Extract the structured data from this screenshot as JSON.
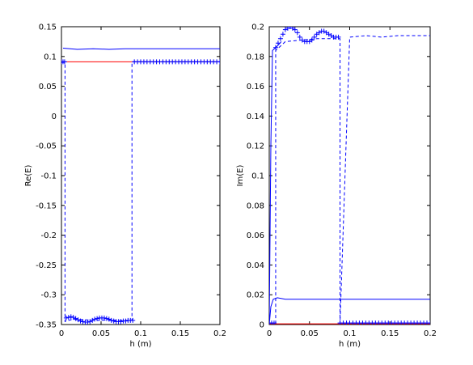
{
  "chart_data": [
    {
      "type": "line",
      "xlabel": "h (m)",
      "ylabel": "Re(E)",
      "xlim": [
        0,
        0.2
      ],
      "ylim": [
        -0.35,
        0.15
      ],
      "xticks": [
        0,
        0.05,
        0.1,
        0.15,
        0.2
      ],
      "xtick_labels": [
        "0",
        "0.05",
        "0.1",
        "0.15",
        "0.2"
      ],
      "yticks": [
        -0.35,
        -0.3,
        -0.25,
        -0.2,
        -0.15,
        -0.1,
        -0.05,
        0,
        0.05,
        0.1,
        0.15
      ],
      "ytick_labels": [
        "-0.35",
        "-0.3",
        "-0.25",
        "-0.2",
        "-0.15",
        "-0.1",
        "-0.05",
        "0",
        "0.05",
        "0.1",
        "0.15"
      ],
      "grid": false,
      "series": [
        {
          "style": "solid",
          "color": "#0000ff",
          "x": [
            0.002,
            0.02,
            0.04,
            0.06,
            0.08,
            0.1,
            0.12,
            0.14,
            0.16,
            0.18,
            0.2
          ],
          "y": [
            0.114,
            0.112,
            0.113,
            0.112,
            0.113,
            0.113,
            0.113,
            0.113,
            0.113,
            0.113,
            0.113
          ]
        },
        {
          "style": "solid",
          "color": "#ff0000",
          "x": [
            0.0,
            0.2
          ],
          "y": [
            0.091,
            0.091
          ]
        },
        {
          "style": "dashed",
          "color": "#0000ff",
          "x": [
            0.0,
            0.0045,
            0.0045,
            0.012,
            0.02,
            0.03,
            0.04,
            0.05,
            0.06,
            0.07,
            0.08,
            0.089,
            0.089,
            0.2
          ],
          "y": [
            0.09,
            0.09,
            -0.345,
            -0.342,
            -0.341,
            -0.342,
            -0.343,
            -0.343,
            -0.342,
            -0.343,
            -0.343,
            -0.343,
            0.091,
            0.091
          ]
        },
        {
          "style": "plus",
          "color": "#0000ff",
          "x": [
            0.0,
            0.002,
            0.004,
            0.092,
            0.096,
            0.1,
            0.104,
            0.108,
            0.112,
            0.116,
            0.12,
            0.124,
            0.128,
            0.132,
            0.136,
            0.14,
            0.144,
            0.148,
            0.152,
            0.156,
            0.16,
            0.164,
            0.168,
            0.172,
            0.176,
            0.18,
            0.184,
            0.188,
            0.192,
            0.196,
            0.2
          ],
          "y": [
            0.091,
            0.091,
            0.091,
            0.091,
            0.091,
            0.091,
            0.091,
            0.091,
            0.091,
            0.091,
            0.091,
            0.091,
            0.091,
            0.091,
            0.091,
            0.091,
            0.091,
            0.091,
            0.091,
            0.091,
            0.091,
            0.091,
            0.091,
            0.091,
            0.091,
            0.091,
            0.091,
            0.091,
            0.091,
            0.091,
            0.091
          ]
        },
        {
          "style": "plus",
          "color": "#0000ff",
          "x": [
            0.006,
            0.009,
            0.012,
            0.015,
            0.018,
            0.021,
            0.024,
            0.027,
            0.03,
            0.033,
            0.036,
            0.039,
            0.042,
            0.045,
            0.048,
            0.051,
            0.054,
            0.057,
            0.06,
            0.063,
            0.066,
            0.069,
            0.072,
            0.075,
            0.078,
            0.081,
            0.084,
            0.087,
            0.09
          ],
          "y": [
            -0.339,
            -0.338,
            -0.337,
            -0.338,
            -0.34,
            -0.342,
            -0.344,
            -0.345,
            -0.346,
            -0.346,
            -0.345,
            -0.343,
            -0.341,
            -0.34,
            -0.339,
            -0.339,
            -0.339,
            -0.34,
            -0.341,
            -0.343,
            -0.344,
            -0.345,
            -0.345,
            -0.345,
            -0.344,
            -0.344,
            -0.343,
            -0.343,
            -0.343
          ]
        }
      ]
    },
    {
      "type": "line",
      "xlabel": "h (m)",
      "ylabel": "Im(E)",
      "xlim": [
        0,
        0.2
      ],
      "ylim": [
        0,
        0.2
      ],
      "xticks": [
        0,
        0.05,
        0.1,
        0.15,
        0.2
      ],
      "xtick_labels": [
        "0",
        "0.05",
        "0.1",
        "0.15",
        "0.2"
      ],
      "yticks": [
        0,
        0.02,
        0.04,
        0.06,
        0.08,
        0.1,
        0.12,
        0.14,
        0.16,
        0.18,
        0.2
      ],
      "ytick_labels": [
        "0",
        "0.02",
        "0.04",
        "0.06",
        "0.08",
        "0.1",
        "0.12",
        "0.14",
        "0.16",
        "0.18",
        "0.2"
      ],
      "grid": false,
      "series": [
        {
          "style": "solid",
          "color": "#0000ff",
          "x": [
            0.0,
            0.002,
            0.005,
            0.01,
            0.02,
            0.04,
            0.06,
            0.08,
            0.1,
            0.12,
            0.14,
            0.16,
            0.18,
            0.2
          ],
          "y": [
            0.0,
            0.012,
            0.017,
            0.018,
            0.017,
            0.017,
            0.017,
            0.017,
            0.017,
            0.017,
            0.017,
            0.017,
            0.017,
            0.017
          ]
        },
        {
          "style": "solid",
          "color": "#ff0000",
          "x": [
            0.0,
            0.2
          ],
          "y": [
            0.0005,
            0.0005
          ]
        },
        {
          "style": "dashed",
          "color": "#0000ff",
          "x": [
            0.0,
            0.008,
            0.008,
            0.012,
            0.02,
            0.04,
            0.06,
            0.088,
            0.088,
            0.1,
            0.12,
            0.14,
            0.16,
            0.18,
            0.2
          ],
          "y": [
            0.001,
            0.001,
            0.184,
            0.186,
            0.19,
            0.191,
            0.192,
            0.192,
            0.001,
            0.193,
            0.194,
            0.193,
            0.194,
            0.194,
            0.194
          ]
        },
        {
          "style": "solid",
          "color": "#0000ff",
          "x": [
            0.0,
            0.002,
            0.004,
            0.006,
            0.01,
            0.015
          ],
          "y": [
            0.0,
            0.12,
            0.184,
            0.185,
            0.187,
            0.19
          ]
        },
        {
          "style": "plus",
          "color": "#0000ff",
          "x": [
            0.0,
            0.003,
            0.006,
            0.088,
            0.092,
            0.096,
            0.1,
            0.104,
            0.108,
            0.112,
            0.116,
            0.12,
            0.124,
            0.128,
            0.132,
            0.136,
            0.14,
            0.144,
            0.148,
            0.152,
            0.156,
            0.16,
            0.164,
            0.168,
            0.172,
            0.176,
            0.18,
            0.184,
            0.188,
            0.192,
            0.196,
            0.2
          ],
          "y": [
            0.001,
            0.001,
            0.001,
            0.001,
            0.001,
            0.001,
            0.001,
            0.001,
            0.001,
            0.001,
            0.001,
            0.001,
            0.001,
            0.001,
            0.001,
            0.001,
            0.001,
            0.001,
            0.001,
            0.001,
            0.001,
            0.001,
            0.001,
            0.001,
            0.001,
            0.001,
            0.001,
            0.001,
            0.001,
            0.001,
            0.001,
            0.001
          ]
        },
        {
          "style": "plus",
          "color": "#0000ff",
          "x": [
            0.008,
            0.011,
            0.014,
            0.017,
            0.02,
            0.023,
            0.026,
            0.029,
            0.032,
            0.035,
            0.038,
            0.041,
            0.044,
            0.047,
            0.05,
            0.053,
            0.056,
            0.059,
            0.062,
            0.065,
            0.068,
            0.071,
            0.074,
            0.077,
            0.08,
            0.083,
            0.086
          ],
          "y": [
            0.186,
            0.189,
            0.192,
            0.195,
            0.198,
            0.199,
            0.2,
            0.199,
            0.198,
            0.196,
            0.193,
            0.191,
            0.19,
            0.19,
            0.19,
            0.191,
            0.193,
            0.195,
            0.196,
            0.197,
            0.197,
            0.196,
            0.195,
            0.194,
            0.193,
            0.193,
            0.193
          ]
        }
      ]
    }
  ]
}
